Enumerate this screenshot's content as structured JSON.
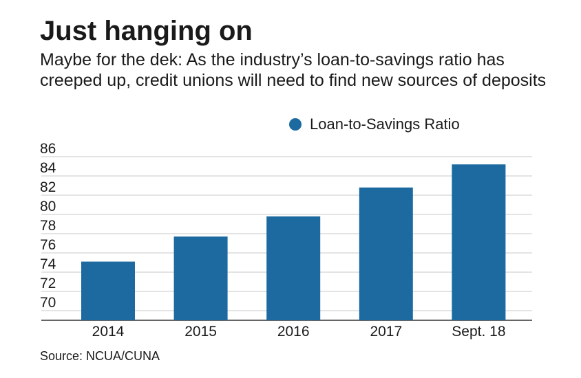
{
  "header": {
    "title": "Just hanging on",
    "subtitle": "Maybe for the dek: As the industry’s loan-to-savings ratio has creeped up, credit unions will need to find new sources of deposits"
  },
  "footer": {
    "source": "Source: NCUA/CUNA"
  },
  "colors": {
    "bar": "#1c6aa0",
    "grid": "#c8c8c8",
    "axis": "#333333"
  },
  "chart_data": {
    "type": "bar",
    "categories": [
      "2014",
      "2015",
      "2016",
      "2017",
      "Sept. 18"
    ],
    "series": [
      {
        "name": "Loan-to-Savings Ratio",
        "values": [
          75.1,
          77.7,
          79.8,
          82.8,
          85.2
        ]
      }
    ],
    "ylim": [
      69,
      86
    ],
    "yticks": [
      86,
      84,
      82,
      80,
      78,
      76,
      74,
      72,
      70
    ],
    "xlabel": "",
    "ylabel": "",
    "grid": true,
    "legend_position": "top-right"
  }
}
